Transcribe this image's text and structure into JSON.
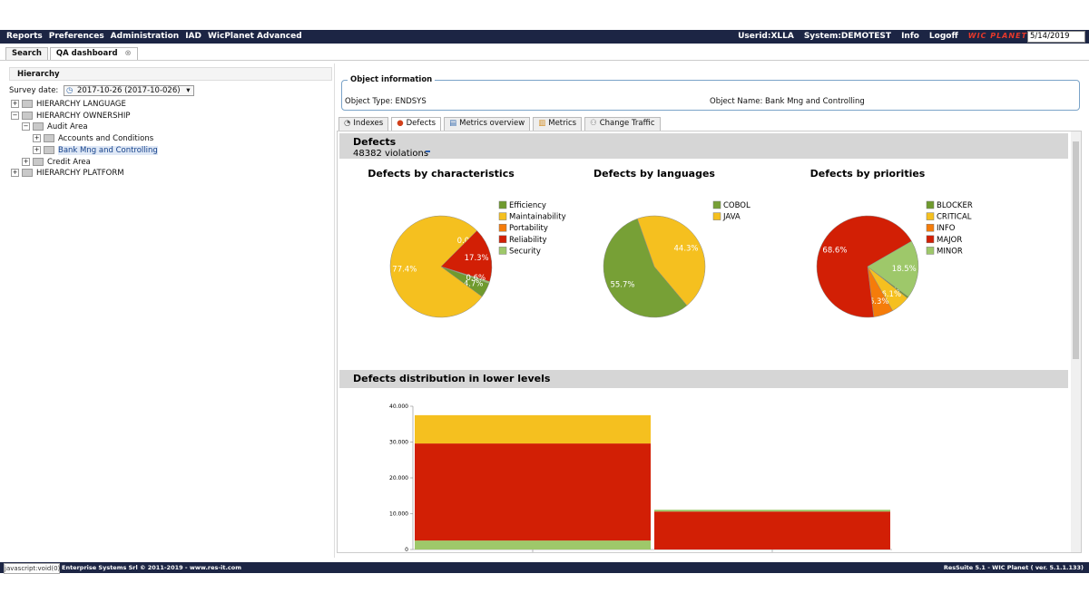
{
  "menu": [
    "Reports",
    "Preferences",
    "Administration",
    "IAD",
    "WicPlanet Advanced"
  ],
  "user": {
    "userid": "Userid:XLLA",
    "system": "System:DEMOTEST",
    "info": "Info",
    "logoff": "Logoff",
    "logo": "WIC PLANET",
    "date": "5/14/2019"
  },
  "tabs": [
    "Search",
    "QA dashboard"
  ],
  "hierarchy": {
    "title": "Hierarchy",
    "survey_label": "Survey date:",
    "survey_value": "2017-10-26 (2017-10-026)",
    "tree": [
      {
        "label": "HIERARCHY LANGUAGE"
      },
      {
        "label": "HIERARCHY OWNERSHIP",
        "children": [
          {
            "label": "Audit Area",
            "children": [
              {
                "label": "Accounts and Conditions"
              },
              {
                "label": "Bank Mng and Controlling",
                "selected": true
              }
            ]
          },
          {
            "label": "Credit Area"
          }
        ]
      },
      {
        "label": "HIERARCHY PLATFORM"
      }
    ]
  },
  "object_info": {
    "title": "Object information",
    "type_label": "Object Type:",
    "type_value": "ENDSYS",
    "name_label": "Object Name:",
    "name_value": "Bank Mng and Controlling"
  },
  "subtabs": [
    "Indexes",
    "Defects",
    "Metrics overview",
    "Metrics",
    "Change Traffic"
  ],
  "defects": {
    "title": "Defects",
    "violations": "48382 violations"
  },
  "chart_data": [
    {
      "type": "pie",
      "title": "Defects by characteristics",
      "categories": [
        "Efficiency",
        "Maintainability",
        "Portability",
        "Reliability",
        "Security"
      ],
      "values": [
        4.7,
        77.4,
        0.0,
        17.3,
        0.6
      ],
      "value_labels": [
        "4.7%",
        "77.4%",
        "0.0%",
        "17.3%",
        "0.6%"
      ],
      "colors": [
        "#6f9a2e",
        "#f5c01f",
        "#f57c0a",
        "#d21f05",
        "#9ec86a"
      ]
    },
    {
      "type": "pie",
      "title": "Defects by languages",
      "categories": [
        "COBOL",
        "JAVA"
      ],
      "values": [
        55.7,
        44.3
      ],
      "value_labels": [
        "55.7%",
        "44.3%"
      ],
      "colors": [
        "#77a036",
        "#f5c01f"
      ]
    },
    {
      "type": "pie",
      "title": "Defects by priorities",
      "categories": [
        "BLOCKER",
        "CRITICAL",
        "INFO",
        "MAJOR",
        "MINOR"
      ],
      "values": [
        0.5,
        6.1,
        6.3,
        68.6,
        18.5
      ],
      "value_labels": [
        "0.5%",
        "6.1%",
        "6.3%",
        "68.6%",
        "18.5%"
      ],
      "colors": [
        "#6f9a2e",
        "#f5c01f",
        "#f57c0a",
        "#d21f05",
        "#9ec86a"
      ]
    },
    {
      "type": "stacked_bar",
      "title": "Defects distribution in lower levels",
      "categories": [
        null,
        null
      ],
      "series": [
        {
          "color": "#9ec86a",
          "values": [
            2500,
            0
          ]
        },
        {
          "color": "#d21f05",
          "values": [
            27100,
            10600
          ]
        },
        {
          "color": "#f5c01f",
          "values": [
            7900,
            0
          ]
        },
        {
          "color": "#9ec86a",
          "values": [
            0,
            500
          ]
        }
      ],
      "ylim": [
        0,
        40000
      ],
      "yticks": [
        0,
        {
          "value": 10000,
          "label": "10.000"
        },
        {
          "value": 20000,
          "label": "20.000"
        },
        {
          "value": 30000,
          "label": "30.000"
        },
        {
          "value": 40000,
          "label": "40.000"
        }
      ]
    }
  ],
  "footer": {
    "status": "javascript:void(0);",
    "copyright": "Enterprise Systems Srl © 2011-2019 - www.res-it.com",
    "version": "ResSuite 5.1 - WIC Planet ( ver. 5.1.1.133)"
  }
}
